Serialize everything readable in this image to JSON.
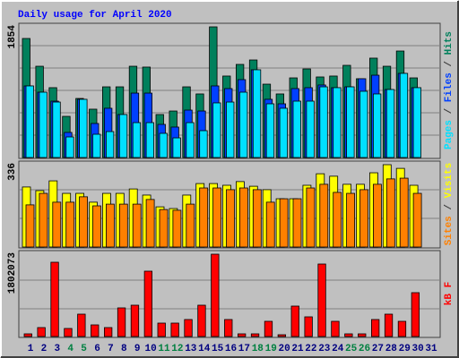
{
  "chart_data": [
    {
      "type": "bar",
      "title": "Daily usage for April 2020",
      "title_color": "#0000ff",
      "legend_separator": " / ",
      "ylim": [
        0,
        1854
      ],
      "yticks": [
        1854
      ],
      "series": [
        {
          "name": "Hits",
          "color": "#00805c",
          "values": [
            1689,
            1295,
            991,
            584,
            838,
            686,
            1003,
            1003,
            1295,
            1283,
            610,
            660,
            1003,
            902,
            1854,
            1156,
            1321,
            1384,
            1041,
            902,
            1130,
            1257,
            1143,
            1156,
            1308,
            1118,
            1410,
            1295,
            1511,
            1130,
            null
          ]
        },
        {
          "name": "Files",
          "color": "#0040ff",
          "values": [
            1016,
            927,
            800,
            356,
            826,
            483,
            699,
            610,
            914,
            914,
            470,
            432,
            673,
            660,
            1016,
            978,
            1105,
            1245,
            826,
            762,
            978,
            991,
            1029,
            991,
            1003,
            1118,
            1168,
            965,
            1194,
            991,
            null
          ]
        },
        {
          "name": "Pages",
          "color": "#00e0ff",
          "values": [
            1016,
            927,
            787,
            292,
            826,
            330,
            368,
            610,
            495,
            495,
            343,
            279,
            495,
            381,
            775,
            787,
            927,
            1245,
            762,
            699,
            800,
            800,
            1003,
            991,
            1003,
            940,
            902,
            965,
            1194,
            991,
            null
          ]
        }
      ]
    },
    {
      "type": "bar",
      "legend_separator": " / ",
      "ylim": [
        0,
        336
      ],
      "yticks": [
        336
      ],
      "series": [
        {
          "name": "Visits",
          "color": "#ffff00",
          "values": [
            245,
            230,
            270,
            219,
            219,
            183,
            219,
            219,
            237,
            212,
            164,
            157,
            212,
            259,
            259,
            252,
            267,
            248,
            234,
            197,
            197,
            252,
            299,
            289,
            256,
            256,
            303,
            336,
            321,
            252,
            null
          ]
        },
        {
          "name": "Sites",
          "color": "#ff8000",
          "values": [
            172,
            219,
            183,
            183,
            205,
            168,
            175,
            175,
            175,
            194,
            153,
            150,
            175,
            241,
            241,
            234,
            241,
            234,
            183,
            197,
            197,
            241,
            256,
            223,
            219,
            234,
            256,
            278,
            281,
            219,
            null
          ]
        }
      ]
    },
    {
      "type": "bar",
      "ylim": [
        0,
        1802073
      ],
      "yticks": [
        1802073
      ],
      "series": [
        {
          "name": "kB F",
          "color": "#ff0000",
          "values": [
            58764,
            195880,
            1625804,
            176292,
            489700,
            254644,
            195880,
            626816,
            685580,
            1429924,
            293820,
            293820,
            372172,
            685580,
            1802073,
            372172,
            58764,
            58764,
            332996,
            39176,
            665992,
            430936,
            1586628,
            332996,
            58764,
            58764,
            372172,
            489700,
            332996,
            959812,
            null
          ]
        }
      ],
      "categories": [
        "1",
        "2",
        "3",
        "4",
        "5",
        "6",
        "7",
        "8",
        "9",
        "10",
        "11",
        "12",
        "13",
        "14",
        "15",
        "16",
        "17",
        "18",
        "19",
        "20",
        "21",
        "22",
        "23",
        "24",
        "25",
        "26",
        "27",
        "28",
        "29",
        "30",
        "31"
      ],
      "category_colors": [
        "#000080",
        "#000080",
        "#000080",
        "#008040",
        "#008040",
        "#000080",
        "#000080",
        "#000080",
        "#000080",
        "#000080",
        "#008040",
        "#008040",
        "#000080",
        "#000080",
        "#000080",
        "#000080",
        "#000080",
        "#008040",
        "#008040",
        "#000080",
        "#000080",
        "#000080",
        "#000080",
        "#000080",
        "#008040",
        "#008040",
        "#000080",
        "#000080",
        "#000080",
        "#000080",
        "#000080"
      ]
    }
  ]
}
